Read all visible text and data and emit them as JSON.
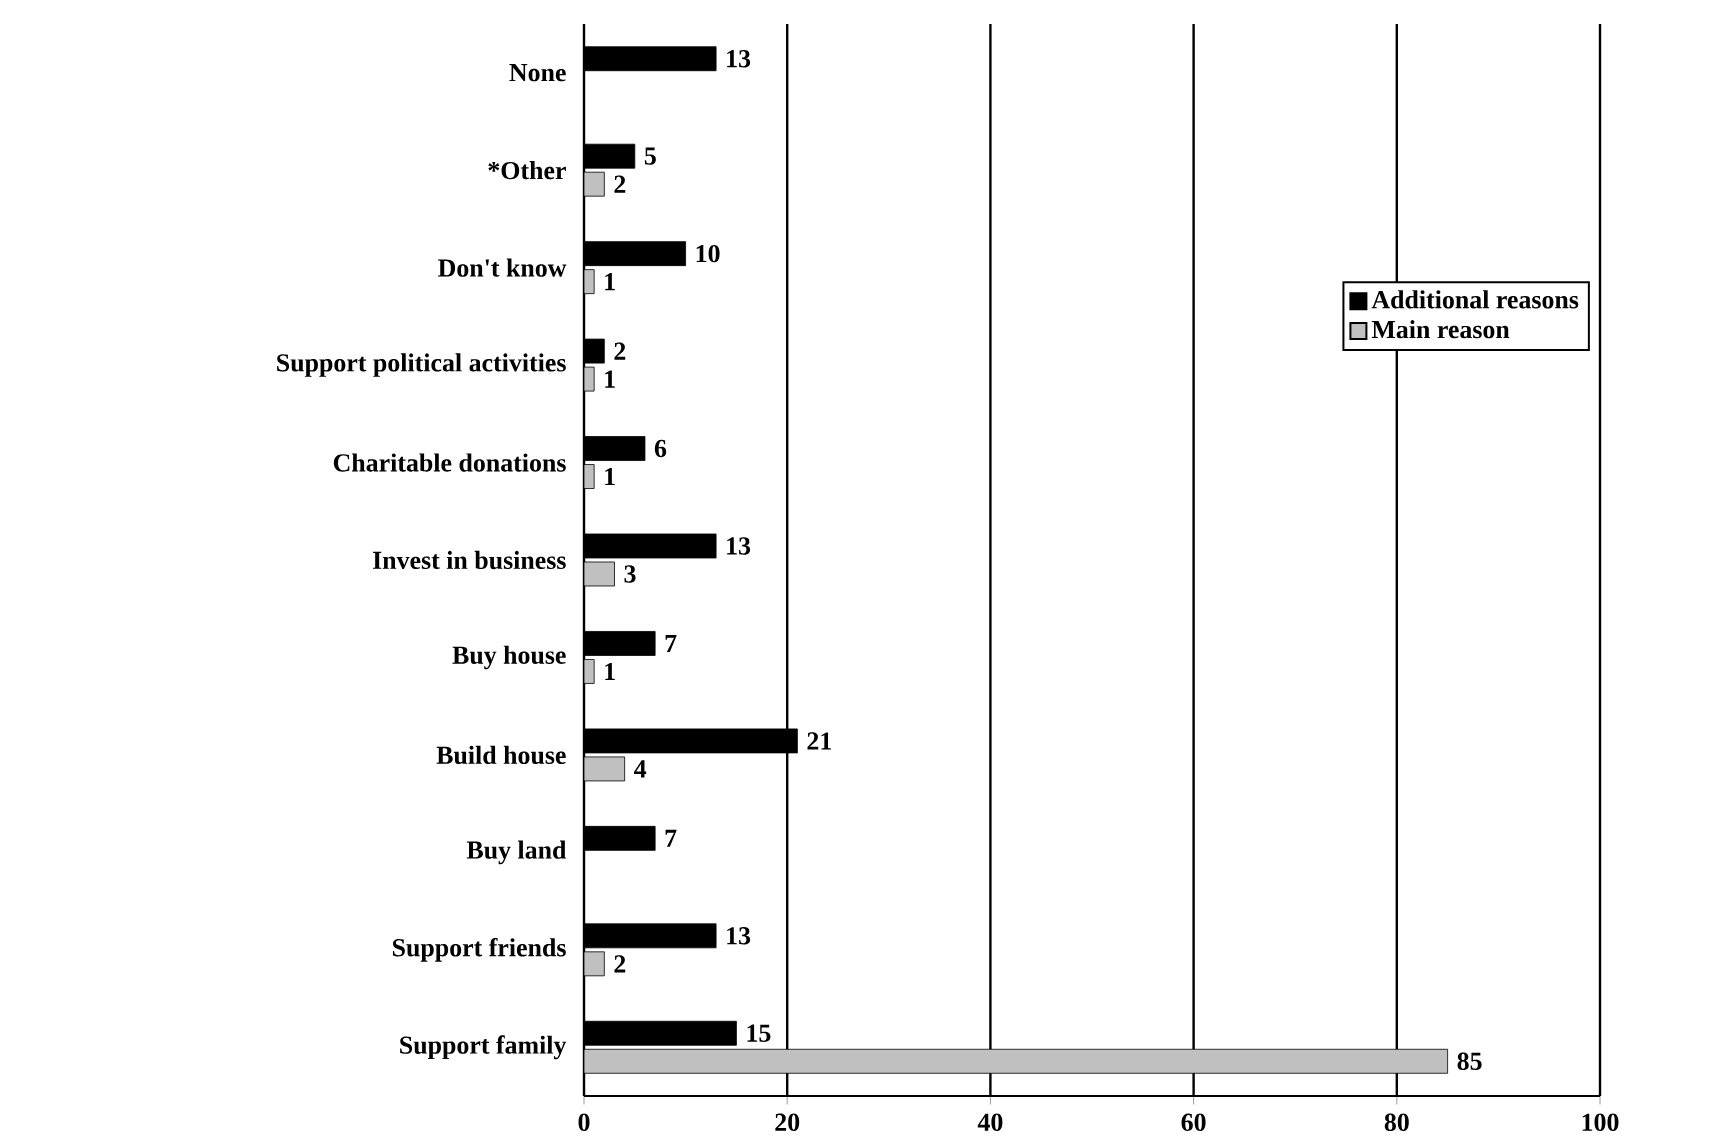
{
  "chart_data": {
    "type": "bar",
    "orientation": "horizontal",
    "categories": [
      "None",
      "*Other",
      "Don't know",
      "Support political activities",
      "Charitable donations",
      "Invest in business",
      "Buy house",
      "Build house",
      "Buy land",
      "Support friends",
      "Support family"
    ],
    "series": [
      {
        "name": "Additional reasons",
        "color": "#000000",
        "values": [
          13,
          5,
          10,
          2,
          6,
          13,
          7,
          21,
          7,
          13,
          15
        ]
      },
      {
        "name": "Main reason",
        "color": "#c0c0c0",
        "values": [
          null,
          2,
          1,
          1,
          1,
          3,
          1,
          4,
          null,
          2,
          85
        ]
      }
    ],
    "xlim": [
      0,
      100
    ],
    "xticks": [
      0,
      20,
      40,
      60,
      80,
      100
    ],
    "data_labels": true,
    "grid": "x",
    "legend": "top right"
  }
}
